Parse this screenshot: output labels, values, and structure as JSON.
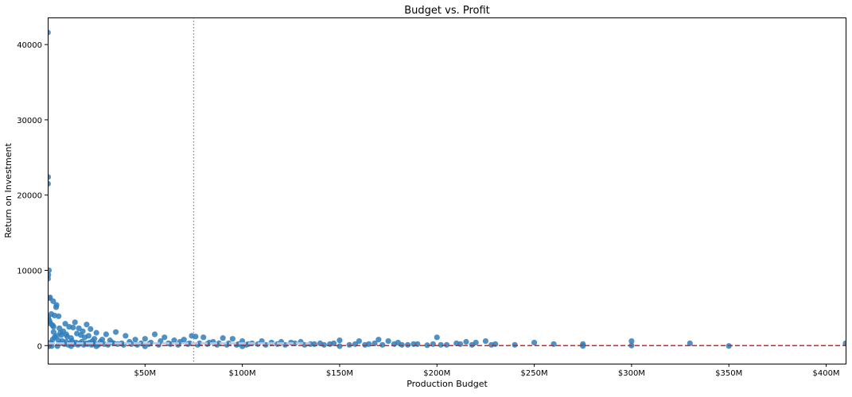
{
  "chart_data": {
    "type": "scatter",
    "title": "Budget vs. Profit",
    "xlabel": "Production Budget",
    "ylabel": "Return on Investment",
    "xlim": [
      0,
      410000000
    ],
    "ylim": [
      -2400,
      43600
    ],
    "x_ticks": [
      {
        "value": 50000000,
        "label": "$50M"
      },
      {
        "value": 100000000,
        "label": "$100M"
      },
      {
        "value": 150000000,
        "label": "$150M"
      },
      {
        "value": 200000000,
        "label": "$200M"
      },
      {
        "value": 250000000,
        "label": "$250M"
      },
      {
        "value": 300000000,
        "label": "$300M"
      },
      {
        "value": 350000000,
        "label": "$350M"
      },
      {
        "value": 400000000,
        "label": "$400M"
      }
    ],
    "y_ticks": [
      {
        "value": 0,
        "label": "0"
      },
      {
        "value": 10000,
        "label": "10000"
      },
      {
        "value": 20000,
        "label": "20000"
      },
      {
        "value": 30000,
        "label": "30000"
      },
      {
        "value": 40000,
        "label": "40000"
      }
    ],
    "grid": false,
    "point_color": "#2e7ebc",
    "reference_lines": [
      {
        "orientation": "vertical",
        "value": 75000000,
        "style": "dotted",
        "color": "#888888"
      },
      {
        "orientation": "horizontal",
        "value": 0,
        "style": "dashed",
        "color": "#e0201a"
      },
      {
        "orientation": "horizontal-segment",
        "value": 300,
        "x_range": [
          0,
          135000000
        ],
        "style": "dashed",
        "color": "#b9cbe4"
      }
    ],
    "points": [
      [
        100000,
        41600
      ],
      [
        200000,
        22400
      ],
      [
        150000,
        21500
      ],
      [
        600000,
        10000
      ],
      [
        300000,
        9400
      ],
      [
        150000,
        8900
      ],
      [
        1200000,
        6400
      ],
      [
        700000,
        6300
      ],
      [
        2800000,
        5900
      ],
      [
        4500000,
        5400
      ],
      [
        4300000,
        5100
      ],
      [
        3500000,
        4000
      ],
      [
        5600000,
        3900
      ],
      [
        1800000,
        4200
      ],
      [
        200000,
        3800
      ],
      [
        500000,
        3500
      ],
      [
        1000000,
        3200
      ],
      [
        1500000,
        2900
      ],
      [
        2500000,
        2700
      ],
      [
        3000000,
        2500
      ],
      [
        6000000,
        2300
      ],
      [
        9000000,
        2900
      ],
      [
        14000000,
        3100
      ],
      [
        11000000,
        2500
      ],
      [
        13000000,
        2400
      ],
      [
        16000000,
        2300
      ],
      [
        20000000,
        2800
      ],
      [
        22000000,
        2200
      ],
      [
        18000000,
        1900
      ],
      [
        25000000,
        1700
      ],
      [
        35000000,
        1800
      ],
      [
        30000000,
        1500
      ],
      [
        15000000,
        1600
      ],
      [
        8000000,
        1900
      ],
      [
        7000000,
        1400
      ],
      [
        10000000,
        1200
      ],
      [
        12000000,
        1000
      ],
      [
        19000000,
        1100
      ],
      [
        24000000,
        900
      ],
      [
        28000000,
        800
      ],
      [
        32000000,
        700
      ],
      [
        40000000,
        1300
      ],
      [
        45000000,
        800
      ],
      [
        50000000,
        900
      ],
      [
        55000000,
        1500
      ],
      [
        60000000,
        1100
      ],
      [
        65000000,
        700
      ],
      [
        70000000,
        800
      ],
      [
        74000000,
        1300
      ],
      [
        76000000,
        1200
      ],
      [
        80000000,
        1100
      ],
      [
        85000000,
        500
      ],
      [
        90000000,
        1000
      ],
      [
        95000000,
        900
      ],
      [
        100000000,
        600
      ],
      [
        105000000,
        300
      ],
      [
        110000000,
        600
      ],
      [
        115000000,
        400
      ],
      [
        120000000,
        500
      ],
      [
        125000000,
        400
      ],
      [
        130000000,
        500
      ],
      [
        140000000,
        300
      ],
      [
        150000000,
        700
      ],
      [
        160000000,
        600
      ],
      [
        170000000,
        800
      ],
      [
        175000000,
        600
      ],
      [
        180000000,
        400
      ],
      [
        190000000,
        200
      ],
      [
        200000000,
        1100
      ],
      [
        210000000,
        300
      ],
      [
        215000000,
        500
      ],
      [
        220000000,
        400
      ],
      [
        225000000,
        600
      ],
      [
        230000000,
        200
      ],
      [
        250000000,
        400
      ],
      [
        260000000,
        200
      ],
      [
        275000000,
        200
      ],
      [
        300000000,
        600
      ],
      [
        330000000,
        300
      ],
      [
        350000000,
        -50
      ],
      [
        410000000,
        300
      ],
      [
        3000000,
        1800
      ],
      [
        6500000,
        1700
      ],
      [
        9500000,
        1500
      ],
      [
        17000000,
        1400
      ],
      [
        21000000,
        1300
      ],
      [
        23000000,
        600
      ],
      [
        27000000,
        500
      ],
      [
        33000000,
        400
      ],
      [
        38000000,
        300
      ],
      [
        42000000,
        500
      ],
      [
        48000000,
        300
      ],
      [
        52000000,
        200
      ],
      [
        58000000,
        600
      ],
      [
        62000000,
        300
      ],
      [
        68000000,
        500
      ],
      [
        72000000,
        200
      ],
      [
        78000000,
        300
      ],
      [
        82000000,
        200
      ],
      [
        88000000,
        300
      ],
      [
        92000000,
        100
      ],
      [
        98000000,
        200
      ],
      [
        102000000,
        100
      ],
      [
        108000000,
        200
      ],
      [
        112000000,
        100
      ],
      [
        118000000,
        200
      ],
      [
        122000000,
        100
      ],
      [
        135000000,
        200
      ],
      [
        145000000,
        200
      ],
      [
        155000000,
        100
      ],
      [
        165000000,
        200
      ],
      [
        185000000,
        100
      ],
      [
        195000000,
        50
      ],
      [
        205000000,
        100
      ],
      [
        240000000,
        100
      ],
      [
        300000000,
        0
      ],
      [
        275000000,
        -50
      ],
      [
        150000000,
        -80
      ],
      [
        100000000,
        -100
      ],
      [
        50000000,
        -100
      ],
      [
        25000000,
        -90
      ],
      [
        12000000,
        -80
      ],
      [
        5000000,
        -70
      ],
      [
        2000000,
        -60
      ],
      [
        500000,
        -100
      ],
      [
        1000000,
        100
      ],
      [
        1500000,
        400
      ],
      [
        2500000,
        800
      ],
      [
        3500000,
        1100
      ],
      [
        4500000,
        1300
      ],
      [
        5500000,
        700
      ],
      [
        6500000,
        300
      ],
      [
        7500000,
        600
      ],
      [
        8500000,
        200
      ],
      [
        9500000,
        500
      ],
      [
        10500000,
        100
      ],
      [
        11500000,
        300
      ],
      [
        12500000,
        600
      ],
      [
        13500000,
        200
      ],
      [
        14500000,
        400
      ],
      [
        15500000,
        100
      ],
      [
        16500000,
        300
      ],
      [
        17500000,
        500
      ],
      [
        18500000,
        100
      ],
      [
        19500000,
        300
      ],
      [
        20500000,
        200
      ],
      [
        21500000,
        400
      ],
      [
        22500000,
        100
      ],
      [
        23500000,
        300
      ],
      [
        24500000,
        200
      ],
      [
        26000000,
        100
      ],
      [
        29000000,
        200
      ],
      [
        31000000,
        100
      ],
      [
        34000000,
        300
      ],
      [
        36000000,
        200
      ],
      [
        39000000,
        100
      ],
      [
        43000000,
        200
      ],
      [
        46000000,
        100
      ],
      [
        53000000,
        400
      ],
      [
        57000000,
        100
      ],
      [
        63000000,
        200
      ],
      [
        67000000,
        100
      ],
      [
        73000000,
        300
      ],
      [
        77000000,
        100
      ],
      [
        83000000,
        400
      ],
      [
        87000000,
        100
      ],
      [
        93000000,
        300
      ],
      [
        97000000,
        100
      ],
      [
        103000000,
        200
      ],
      [
        127000000,
        300
      ],
      [
        132000000,
        100
      ],
      [
        137000000,
        200
      ],
      [
        142000000,
        100
      ],
      [
        147000000,
        300
      ],
      [
        158000000,
        200
      ],
      [
        163000000,
        100
      ],
      [
        168000000,
        300
      ],
      [
        172000000,
        100
      ],
      [
        178000000,
        200
      ],
      [
        182000000,
        100
      ],
      [
        188000000,
        200
      ],
      [
        198000000,
        200
      ],
      [
        202000000,
        100
      ],
      [
        212000000,
        200
      ],
      [
        218000000,
        100
      ],
      [
        228000000,
        100
      ]
    ]
  }
}
